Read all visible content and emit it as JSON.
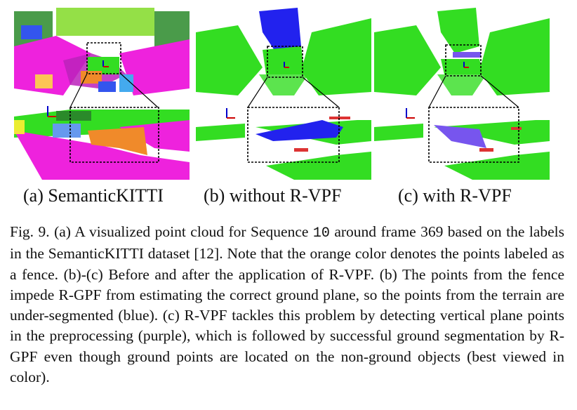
{
  "figure": {
    "panels": [
      {
        "id": "a",
        "caption": "(a) SemanticKITTI"
      },
      {
        "id": "b",
        "caption": "(b) without R-VPF"
      },
      {
        "id": "c",
        "caption": "(c) with R-VPF"
      }
    ],
    "caption": {
      "label": "Fig. 9.",
      "text_before_seq": " (a) A visualized point cloud for Sequence ",
      "sequence": "10",
      "text_after_seq": " around frame 369 based on the labels in the SemanticKITTI dataset [12]. Note that the orange color denotes the points labeled as a fence. (b)-(c) Before and after the application of R-VPF. (b) The points from the fence impede R-GPF from estimating the correct ground plane, so the points from the terrain are under-segmented (blue). (c) R-VPF tackles this problem by detecting vertical plane points in the preprocessing (purple), which is followed by successful ground segmentation by R-GPF even though ground points are located on the non-ground objects (best viewed in color)."
    },
    "colors": {
      "ground_green": "#33dd22",
      "fence_orange": "#f08a2a",
      "terrain_magenta": "#ee22dd",
      "undersegmented_blue": "#2222ee",
      "vertical_purple": "#7755ee",
      "vegetation_lime": "#88dd33"
    }
  }
}
